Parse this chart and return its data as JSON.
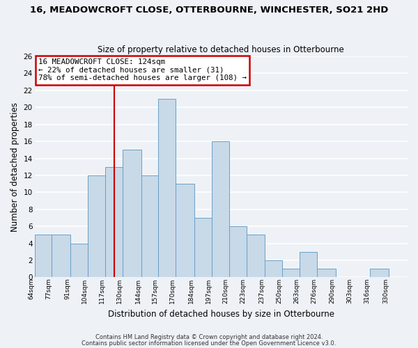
{
  "title": "16, MEADOWCROFT CLOSE, OTTERBOURNE, WINCHESTER, SO21 2HD",
  "subtitle": "Size of property relative to detached houses in Otterbourne",
  "xlabel": "Distribution of detached houses by size in Otterbourne",
  "ylabel": "Number of detached properties",
  "footer1": "Contains HM Land Registry data © Crown copyright and database right 2024.",
  "footer2": "Contains public sector information licensed under the Open Government Licence v3.0.",
  "bin_labels": [
    "64sqm",
    "77sqm",
    "91sqm",
    "104sqm",
    "117sqm",
    "130sqm",
    "144sqm",
    "157sqm",
    "170sqm",
    "184sqm",
    "197sqm",
    "210sqm",
    "223sqm",
    "237sqm",
    "250sqm",
    "263sqm",
    "276sqm",
    "290sqm",
    "303sqm",
    "316sqm",
    "330sqm"
  ],
  "bar_values": [
    5,
    5,
    4,
    12,
    13,
    15,
    12,
    21,
    11,
    7,
    16,
    6,
    5,
    2,
    1,
    3,
    1,
    0,
    0,
    1,
    0
  ],
  "bar_color": "#c8d9e8",
  "bar_edgecolor": "#6aa0c7",
  "ylim": [
    0,
    26
  ],
  "yticks": [
    0,
    2,
    4,
    6,
    8,
    10,
    12,
    14,
    16,
    18,
    20,
    22,
    24,
    26
  ],
  "bin_edges": [
    64,
    77,
    91,
    104,
    117,
    130,
    144,
    157,
    170,
    184,
    197,
    210,
    223,
    237,
    250,
    263,
    276,
    290,
    303,
    316,
    330,
    344
  ],
  "annotation_line1": "16 MEADOWCROFT CLOSE: 124sqm",
  "annotation_line2": "← 22% of detached houses are smaller (31)",
  "annotation_line3": "78% of semi-detached houses are larger (108) →",
  "annotation_box_color": "#ffffff",
  "annotation_box_edgecolor": "#cc0000",
  "vline_color": "#cc0000",
  "background_color": "#eef2f7",
  "plot_bg_color": "#eef2f7",
  "grid_color": "#ffffff"
}
